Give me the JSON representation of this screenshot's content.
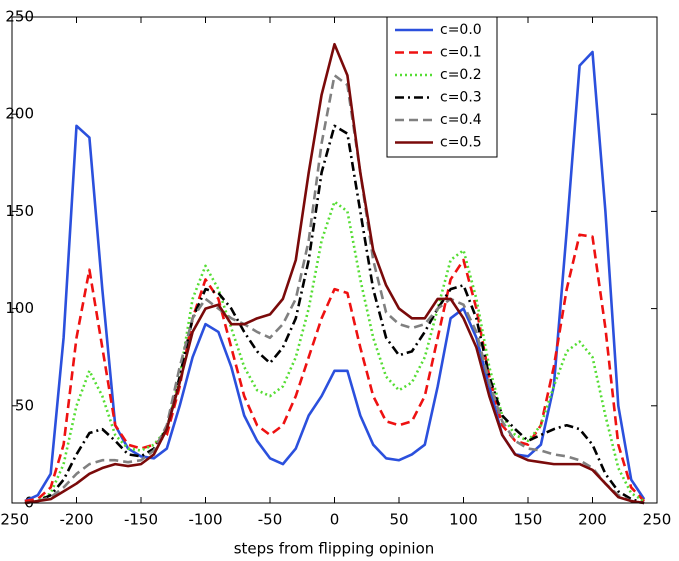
{
  "chart_data": {
    "type": "line",
    "xlabel": "steps from flipping opinion",
    "x": [
      -240,
      -230,
      -220,
      -210,
      -200,
      -190,
      -180,
      -170,
      -160,
      -150,
      -140,
      -130,
      -120,
      -110,
      -100,
      -90,
      -80,
      -70,
      -60,
      -50,
      -40,
      -30,
      -20,
      -10,
      0,
      10,
      20,
      30,
      40,
      50,
      60,
      70,
      80,
      90,
      100,
      110,
      120,
      130,
      140,
      150,
      160,
      170,
      180,
      190,
      200,
      210,
      220,
      230,
      240
    ],
    "xlim": [
      -250,
      250
    ],
    "xticks": [
      -250,
      -200,
      -150,
      -100,
      -50,
      0,
      50,
      100,
      150,
      200,
      250
    ],
    "ylim": [
      0,
      250
    ],
    "yticks": [
      0,
      50,
      100,
      150,
      200,
      250
    ],
    "legend": "northeast",
    "series": [
      {
        "name": "c=0.0",
        "color": "#2b50dd",
        "dash": "solid",
        "values": [
          1,
          4,
          15,
          85,
          194,
          188,
          110,
          40,
          28,
          24,
          23,
          28,
          50,
          75,
          92,
          88,
          70,
          45,
          32,
          23,
          20,
          28,
          45,
          55,
          68,
          68,
          45,
          30,
          23,
          22,
          25,
          30,
          60,
          95,
          100,
          85,
          60,
          35,
          25,
          24,
          30,
          60,
          140,
          225,
          232,
          150,
          50,
          12,
          2
        ]
      },
      {
        "name": "c=0.1",
        "color": "#ee1111",
        "dash": "dashed",
        "values": [
          1,
          2,
          8,
          30,
          85,
          120,
          80,
          40,
          30,
          28,
          30,
          35,
          60,
          95,
          115,
          105,
          80,
          55,
          40,
          35,
          40,
          55,
          75,
          95,
          110,
          108,
          80,
          55,
          42,
          40,
          42,
          55,
          85,
          115,
          125,
          100,
          65,
          40,
          32,
          30,
          40,
          70,
          110,
          138,
          137,
          90,
          30,
          8,
          1
        ]
      },
      {
        "name": "c=0.2",
        "color": "#55dd33",
        "dash": "dotted",
        "values": [
          0,
          1,
          5,
          20,
          50,
          68,
          55,
          35,
          28,
          27,
          30,
          38,
          65,
          105,
          122,
          110,
          90,
          70,
          58,
          55,
          60,
          75,
          100,
          135,
          155,
          150,
          115,
          85,
          65,
          58,
          62,
          75,
          100,
          125,
          130,
          105,
          70,
          45,
          35,
          32,
          40,
          60,
          78,
          83,
          75,
          45,
          18,
          5,
          1
        ]
      },
      {
        "name": "c=0.3",
        "color": "#000000",
        "dash": "dashdot",
        "values": [
          0,
          1,
          4,
          12,
          25,
          36,
          38,
          32,
          25,
          24,
          28,
          38,
          65,
          95,
          110,
          108,
          100,
          88,
          78,
          72,
          80,
          95,
          125,
          170,
          194,
          190,
          150,
          110,
          85,
          76,
          78,
          88,
          100,
          110,
          112,
          95,
          65,
          45,
          38,
          32,
          35,
          38,
          40,
          38,
          30,
          15,
          6,
          2,
          0
        ]
      },
      {
        "name": "c=0.4",
        "color": "#808080",
        "dash": "dashed",
        "values": [
          0,
          1,
          3,
          8,
          15,
          20,
          22,
          22,
          21,
          22,
          27,
          40,
          70,
          95,
          105,
          100,
          95,
          92,
          88,
          85,
          92,
          105,
          135,
          185,
          220,
          215,
          170,
          125,
          98,
          92,
          90,
          92,
          100,
          105,
          102,
          88,
          62,
          42,
          32,
          28,
          27,
          25,
          24,
          22,
          18,
          10,
          4,
          1,
          0
        ]
      },
      {
        "name": "c=0.5",
        "color": "#7a0a0a",
        "dash": "solid",
        "values": [
          0,
          1,
          2,
          6,
          10,
          15,
          18,
          20,
          19,
          20,
          25,
          38,
          62,
          88,
          100,
          102,
          92,
          92,
          95,
          97,
          105,
          125,
          170,
          210,
          236,
          220,
          170,
          130,
          112,
          100,
          95,
          95,
          105,
          105,
          95,
          80,
          55,
          35,
          25,
          22,
          21,
          20,
          20,
          20,
          17,
          10,
          3,
          1,
          0
        ]
      }
    ]
  }
}
